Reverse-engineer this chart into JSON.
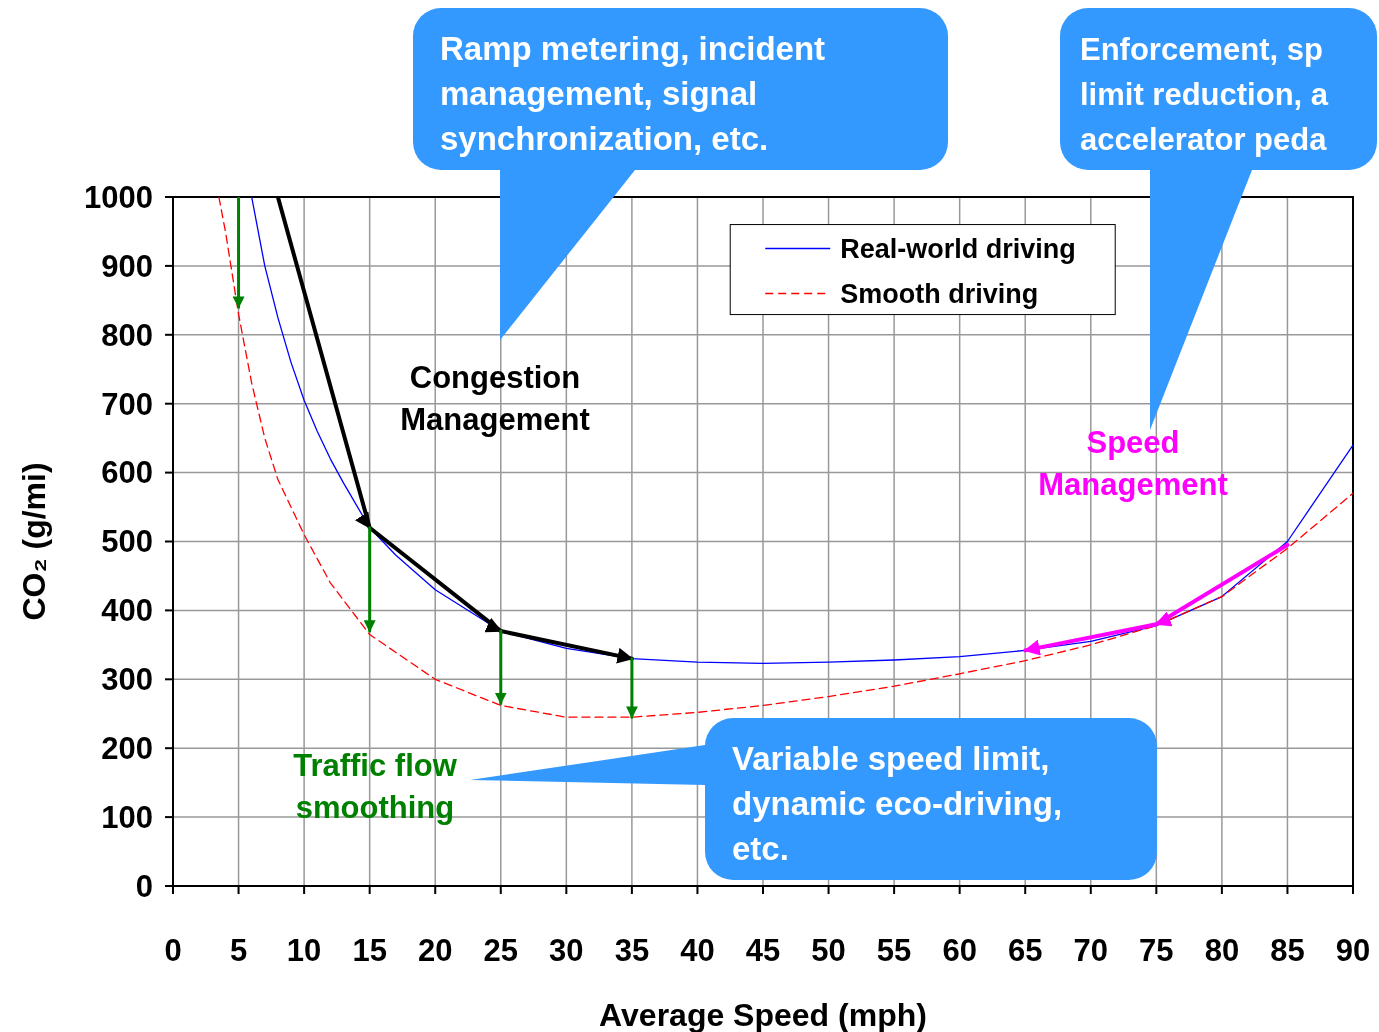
{
  "chart_data": {
    "type": "line",
    "xlabel": "Average Speed (mph)",
    "ylabel": "CO₂ (g/mi)",
    "xlim": [
      0,
      90
    ],
    "ylim": [
      0,
      1000
    ],
    "xticks": [
      0,
      5,
      10,
      15,
      20,
      25,
      30,
      35,
      40,
      45,
      50,
      55,
      60,
      65,
      70,
      75,
      80,
      85,
      90
    ],
    "yticks": [
      0,
      100,
      200,
      300,
      400,
      500,
      600,
      700,
      800,
      900,
      1000
    ],
    "grid": true,
    "legend": "top right",
    "series": [
      {
        "name": "Real-world driving",
        "color": "#0000ff",
        "line_style": "solid",
        "x": [
          6,
          7,
          8,
          9,
          10,
          11,
          12,
          13,
          15,
          17,
          20,
          25,
          30,
          35,
          40,
          45,
          50,
          55,
          60,
          65,
          70,
          75,
          80,
          85,
          90
        ],
        "values": [
          1000,
          900,
          825,
          760,
          705,
          660,
          620,
          585,
          520,
          480,
          430,
          370,
          345,
          330,
          325,
          323,
          325,
          328,
          333,
          342,
          355,
          378,
          420,
          500,
          640
        ]
      },
      {
        "name": "Smooth driving",
        "color": "#ff0000",
        "line_style": "dashed",
        "x": [
          3.5,
          4,
          5,
          6,
          7,
          8,
          10,
          12,
          15,
          20,
          25,
          30,
          35,
          40,
          45,
          50,
          55,
          60,
          65,
          70,
          75,
          80,
          85,
          90
        ],
        "values": [
          1000,
          950,
          830,
          730,
          650,
          590,
          510,
          440,
          365,
          300,
          262,
          245,
          245,
          252,
          262,
          275,
          290,
          308,
          327,
          350,
          378,
          420,
          490,
          570
        ]
      },
      {
        "color": "#000000",
        "x": [
          8,
          15,
          25,
          35
        ],
        "values": [
          1000,
          520,
          370,
          330
        ]
      },
      {
        "color": "#ff00ff",
        "x": [
          85,
          75,
          65
        ],
        "values": [
          495,
          380,
          342
        ]
      },
      {
        "color": "#008000",
        "x": [
          5,
          5
        ],
        "values": [
          1000,
          840
        ]
      },
      {
        "color": "#008000",
        "x": [
          15,
          15
        ],
        "values": [
          520,
          370
        ]
      },
      {
        "color": "#008000",
        "x": [
          25,
          25
        ],
        "values": [
          370,
          265
        ]
      },
      {
        "color": "#008000",
        "x": [
          35,
          35
        ],
        "values": [
          330,
          245
        ]
      }
    ],
    "annotations": [
      "Congestion Management",
      "Traffic flow smoothing",
      "Speed Management",
      "Ramp metering, incident management, signal synchronization, etc.",
      "Enforcement, sp limit reduction, a accelerator peda",
      "Variable speed limit, dynamic eco-driving, etc."
    ]
  }
}
